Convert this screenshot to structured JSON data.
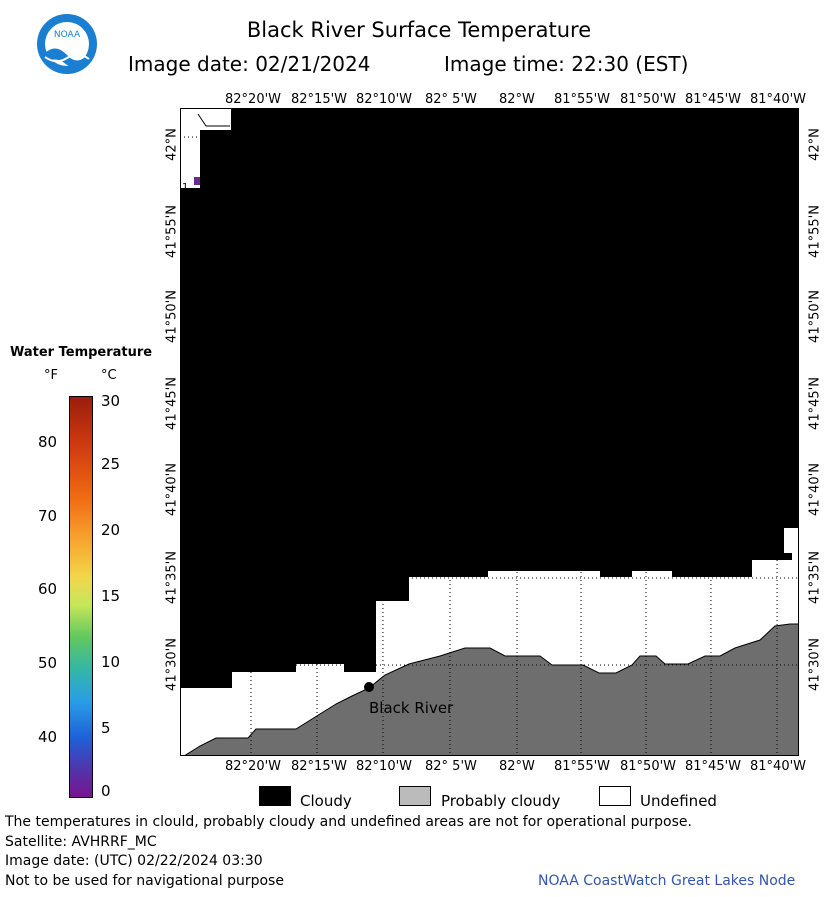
{
  "header": {
    "logo_text": "NOAA",
    "title": "Black River Surface Temperature",
    "image_date": "Image date: 02/21/2024",
    "image_time": "Image time: 22:30 (EST)"
  },
  "map": {
    "lon_labels": [
      "82°20'W",
      "82°15'W",
      "82°10'W",
      "82° 5'W",
      "82°W",
      "81°55'W",
      "81°50'W",
      "81°45'W",
      "81°40'W"
    ],
    "lat_labels": [
      "42°N",
      "41°55'N",
      "41°50'N",
      "41°45'N",
      "41°40'N",
      "41°35'N",
      "41°30'N"
    ],
    "station_label": "Black River",
    "edge_value": "1"
  },
  "colorbar": {
    "title": "Water Temperature",
    "unit_f": "°F",
    "unit_c": "°C",
    "f_ticks": [
      "80",
      "70",
      "60",
      "50",
      "40"
    ],
    "c_ticks": [
      "30",
      "25",
      "20",
      "15",
      "10",
      "5",
      "0"
    ]
  },
  "legend": {
    "cloudy": "Cloudy",
    "probably_cloudy": "Probably cloudy",
    "undefined": "Undefined"
  },
  "footer": {
    "line1": "The temperatures in clould, probably cloudy and undefined areas are not for operational purpose.",
    "line2": "Satellite: AVHRRF_MC",
    "line3": "Image date: (UTC) 02/22/2024  03:30",
    "line4": "Not to be used for navigational purpose",
    "credit": "NOAA CoastWatch Great Lakes Node"
  },
  "colors": {
    "cloudy": "#000000",
    "probably_cloudy": "#bbbbbb",
    "undefined": "#ffffff",
    "land": "#6e6e6e",
    "credit_text": "#3355aa",
    "logo_blue": "#1a7fd0"
  }
}
